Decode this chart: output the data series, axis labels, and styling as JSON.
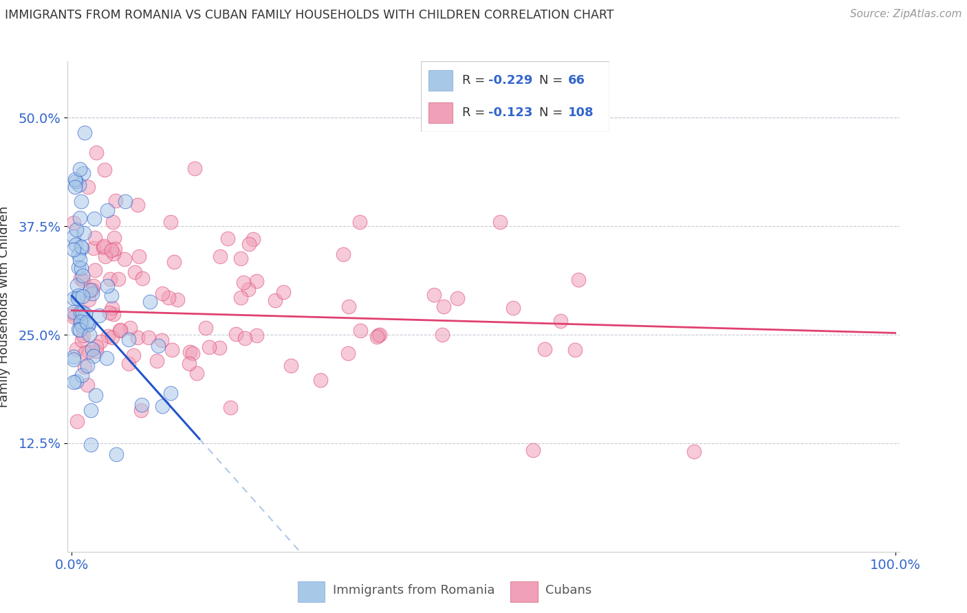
{
  "title": "IMMIGRANTS FROM ROMANIA VS CUBAN FAMILY HOUSEHOLDS WITH CHILDREN CORRELATION CHART",
  "source": "Source: ZipAtlas.com",
  "ylabel": "Family Households with Children",
  "ytick_labels": [
    "12.5%",
    "25.0%",
    "37.5%",
    "50.0%"
  ],
  "ytick_values": [
    0.125,
    0.25,
    0.375,
    0.5
  ],
  "legend_label1": "Immigrants from Romania",
  "legend_label2": "Cubans",
  "color_romania": "#a8c8e8",
  "color_cuba": "#f0a0b8",
  "color_romania_line": "#2255cc",
  "color_cuba_line": "#e04070",
  "color_dashed": "#b0c8e8",
  "background": "#ffffff",
  "plot_bg": "#ffffff",
  "R_romania": -0.229,
  "N_romania": 66,
  "R_cuba": -0.123,
  "N_cuba": 108
}
